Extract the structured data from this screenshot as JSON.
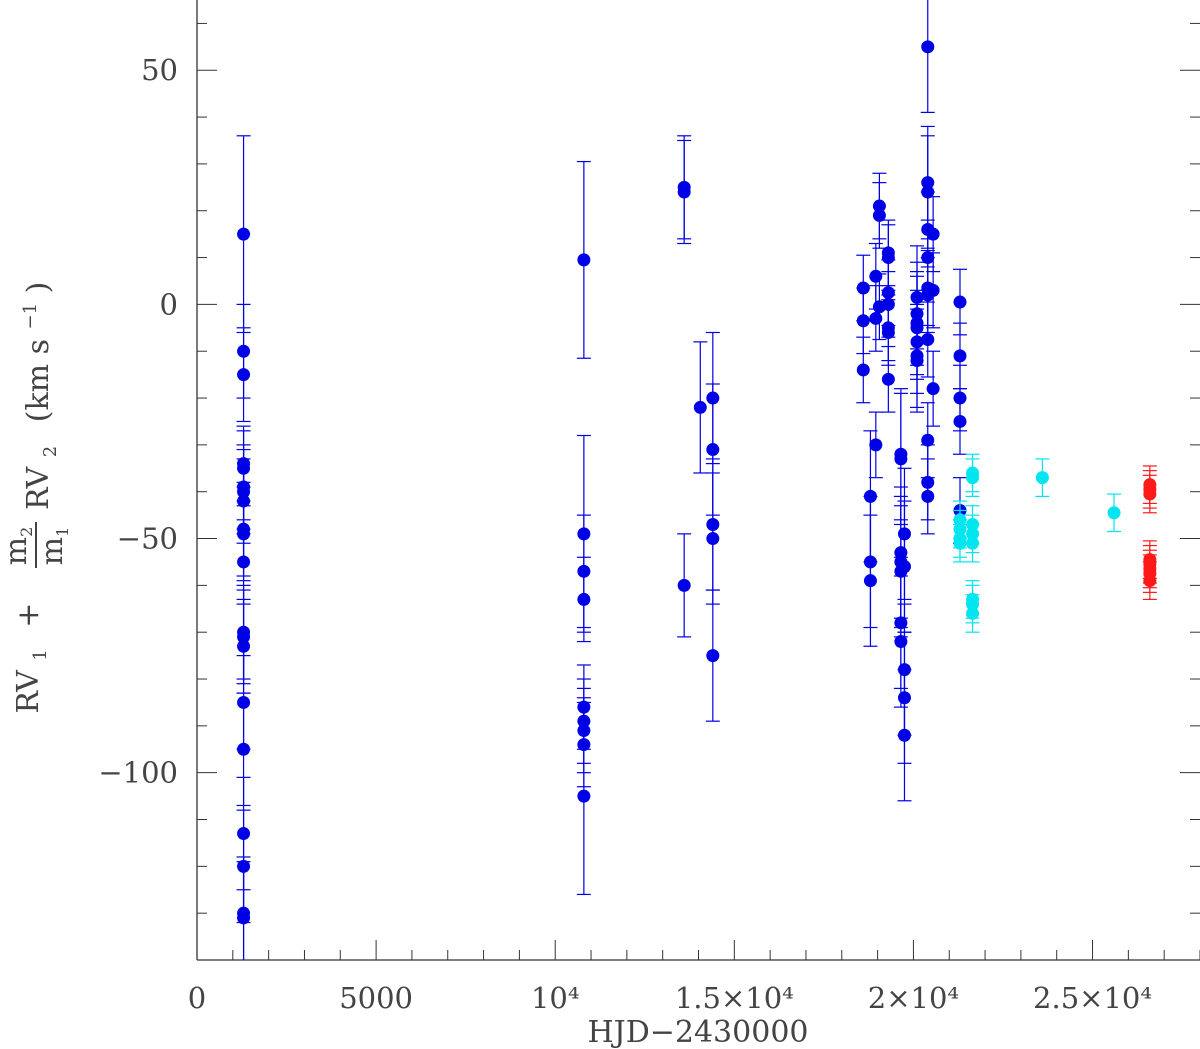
{
  "chart_data": {
    "type": "scatter",
    "xlabel": "HJD−2430000",
    "ylabel": {
      "prefix": "RV",
      "sub1": "1",
      "plus": "+",
      "num": "m",
      "num_sub": "2",
      "den": "m",
      "den_sub": "1",
      "rv2": "RV",
      "rv2_sub": "2",
      "units": "(km s",
      "units_sup": "−1",
      "units_close": ")"
    },
    "xlim": [
      0,
      28000
    ],
    "ylim": [
      -140,
      65
    ],
    "x_ticks": [
      {
        "value": 0,
        "label": "0"
      },
      {
        "value": 5000,
        "label": "5000"
      },
      {
        "value": 10000,
        "label": "10⁴"
      },
      {
        "value": 15000,
        "label": "1.5×10⁴"
      },
      {
        "value": 20000,
        "label": "2×10⁴"
      },
      {
        "value": 25000,
        "label": "2.5×10⁴"
      }
    ],
    "y_ticks": [
      {
        "value": 50,
        "label": "50"
      },
      {
        "value": 0,
        "label": "0"
      },
      {
        "value": -50,
        "label": "−50"
      },
      {
        "value": -100,
        "label": "−100"
      }
    ],
    "series": [
      {
        "color": "#0000e6",
        "points": [
          [
            1300,
            15,
            21
          ],
          [
            1300,
            -10,
            10
          ],
          [
            1300,
            -15,
            10
          ],
          [
            1300,
            -34,
            8
          ],
          [
            1300,
            -35,
            8
          ],
          [
            1300,
            -39,
            9
          ],
          [
            1300,
            -40,
            9
          ],
          [
            1300,
            -42,
            9
          ],
          [
            1300,
            -48,
            10
          ],
          [
            1300,
            -49,
            10
          ],
          [
            1300,
            -55,
            9
          ],
          [
            1300,
            -70,
            10
          ],
          [
            1300,
            -71,
            10
          ],
          [
            1300,
            -73,
            10
          ],
          [
            1300,
            -85,
            10
          ],
          [
            1300,
            -95,
            12
          ],
          [
            1300,
            -113,
            12
          ],
          [
            1300,
            -120,
            12
          ],
          [
            1300,
            -130,
            12
          ],
          [
            1300,
            -131,
            12
          ],
          [
            10800,
            9.5,
            21
          ],
          [
            10800,
            -49,
            21
          ],
          [
            10800,
            -57,
            12
          ],
          [
            10800,
            -63,
            9
          ],
          [
            10800,
            -86,
            9
          ],
          [
            10800,
            -89,
            9
          ],
          [
            10800,
            -91,
            9
          ],
          [
            10800,
            -94,
            9
          ],
          [
            10800,
            -105,
            21
          ],
          [
            13600,
            25,
            11
          ],
          [
            13600,
            24,
            11
          ],
          [
            13600,
            -60,
            11
          ],
          [
            14050,
            -22,
            14
          ],
          [
            14400,
            -20,
            14
          ],
          [
            14400,
            -31,
            14
          ],
          [
            14400,
            -47,
            14
          ],
          [
            14400,
            -50,
            14
          ],
          [
            14400,
            -75,
            14
          ],
          [
            18600,
            3.5,
            7
          ],
          [
            18600,
            -3.5,
            7
          ],
          [
            18600,
            -14,
            7
          ],
          [
            18800,
            -41,
            14
          ],
          [
            18800,
            -55,
            14
          ],
          [
            18800,
            -59,
            14
          ],
          [
            18950,
            6,
            7
          ],
          [
            18950,
            -3,
            7
          ],
          [
            18950,
            -30,
            7
          ],
          [
            19050,
            21,
            7
          ],
          [
            19050,
            19,
            7
          ],
          [
            19050,
            -0.5,
            7
          ],
          [
            19300,
            11,
            7
          ],
          [
            19300,
            10,
            7
          ],
          [
            19300,
            2.5,
            7
          ],
          [
            19300,
            0,
            7
          ],
          [
            19300,
            -5,
            7
          ],
          [
            19300,
            -6,
            7
          ],
          [
            19300,
            -16,
            7
          ],
          [
            19650,
            -32,
            14
          ],
          [
            19650,
            -33,
            14
          ],
          [
            19650,
            -53,
            14
          ],
          [
            19650,
            -55,
            14
          ],
          [
            19650,
            -57,
            14
          ],
          [
            19650,
            -68,
            14
          ],
          [
            19650,
            -72,
            14
          ],
          [
            19750,
            -49,
            14
          ],
          [
            19750,
            -56,
            14
          ],
          [
            19750,
            -78,
            14
          ],
          [
            19750,
            -84,
            14
          ],
          [
            19750,
            -92,
            14
          ],
          [
            20100,
            1.5,
            11
          ],
          [
            20100,
            -2,
            11
          ],
          [
            20100,
            -4,
            11
          ],
          [
            20100,
            -5,
            11
          ],
          [
            20100,
            -8,
            11
          ],
          [
            20100,
            -11,
            11
          ],
          [
            20100,
            -12,
            11
          ],
          [
            20400,
            55,
            14
          ],
          [
            20400,
            26,
            12
          ],
          [
            20400,
            24,
            12
          ],
          [
            20400,
            16,
            8
          ],
          [
            20400,
            10,
            8
          ],
          [
            20400,
            3.5,
            8
          ],
          [
            20400,
            2,
            8
          ],
          [
            20400,
            -7.5,
            8
          ],
          [
            20400,
            -29,
            8
          ],
          [
            20400,
            -38,
            8
          ],
          [
            20400,
            -41,
            8
          ],
          [
            20550,
            15,
            8
          ],
          [
            20550,
            3,
            8
          ],
          [
            20550,
            -18,
            8
          ],
          [
            21300,
            0.5,
            7
          ],
          [
            21300,
            -11,
            7
          ],
          [
            21300,
            -20,
            7
          ],
          [
            21300,
            -25,
            7
          ],
          [
            21300,
            -44,
            7
          ]
        ]
      },
      {
        "color": "#00e6f0",
        "points": [
          [
            21300,
            -46,
            4
          ],
          [
            21300,
            -48,
            4
          ],
          [
            21300,
            -50,
            4
          ],
          [
            21300,
            -51,
            4
          ],
          [
            21650,
            -36,
            4
          ],
          [
            21650,
            -37,
            4
          ],
          [
            21650,
            -47,
            4
          ],
          [
            21650,
            -49,
            4
          ],
          [
            21650,
            -51,
            4
          ],
          [
            21650,
            -63,
            4
          ],
          [
            21650,
            -64,
            4
          ],
          [
            21650,
            -66,
            4
          ],
          [
            23600,
            -37,
            4
          ],
          [
            25600,
            -44.5,
            4
          ]
        ]
      },
      {
        "color": "#ff1a1a",
        "points": [
          [
            26600,
            -38.5,
            4
          ],
          [
            26600,
            -39.5,
            4
          ],
          [
            26600,
            -40.5,
            4
          ],
          [
            26600,
            -54.5,
            4
          ],
          [
            26600,
            -55.5,
            4
          ],
          [
            26600,
            -56.5,
            4
          ],
          [
            26600,
            -57.5,
            4
          ],
          [
            26600,
            -59,
            4
          ]
        ]
      }
    ]
  }
}
